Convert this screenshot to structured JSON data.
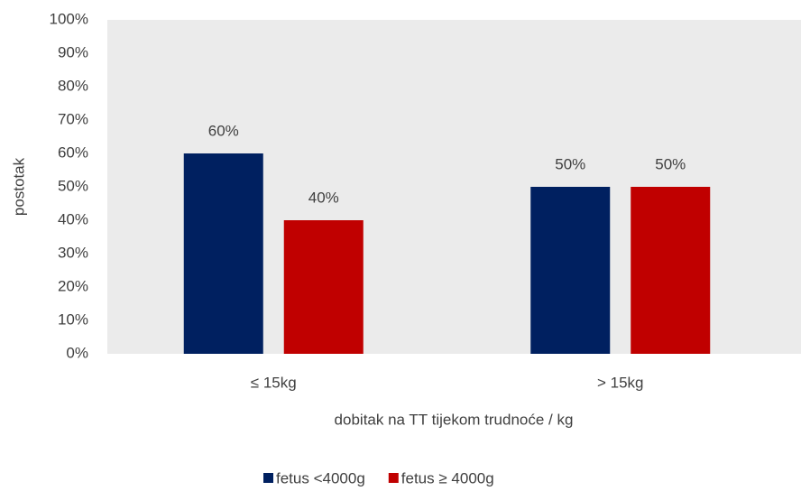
{
  "chart_data": {
    "type": "bar",
    "categories": [
      "≤ 15kg",
      "> 15kg"
    ],
    "series": [
      {
        "name": "fetus <4000g",
        "color": "#002060",
        "values": [
          60,
          50
        ],
        "value_labels": [
          "60%",
          "50%"
        ]
      },
      {
        "name": "fetus ≥ 4000g",
        "color": "#c00000",
        "values": [
          40,
          50
        ],
        "value_labels": [
          "40%",
          "50%"
        ]
      }
    ],
    "xlabel": "dobitak na TT tijekom trudnoće / kg",
    "ylabel": "postotak",
    "ylim": [
      0,
      100
    ],
    "yticks": [
      {
        "value": 0,
        "label": "0%"
      },
      {
        "value": 10,
        "label": "10%"
      },
      {
        "value": 20,
        "label": "20%"
      },
      {
        "value": 30,
        "label": "30%"
      },
      {
        "value": 40,
        "label": "40%"
      },
      {
        "value": 50,
        "label": "50%"
      },
      {
        "value": 60,
        "label": "60%"
      },
      {
        "value": 70,
        "label": "70%"
      },
      {
        "value": 80,
        "label": "80%"
      },
      {
        "value": 90,
        "label": "90%"
      },
      {
        "value": 100,
        "label": "100%"
      }
    ],
    "grid": false,
    "legend": "bottom",
    "plot_background": "#ebebeb"
  }
}
